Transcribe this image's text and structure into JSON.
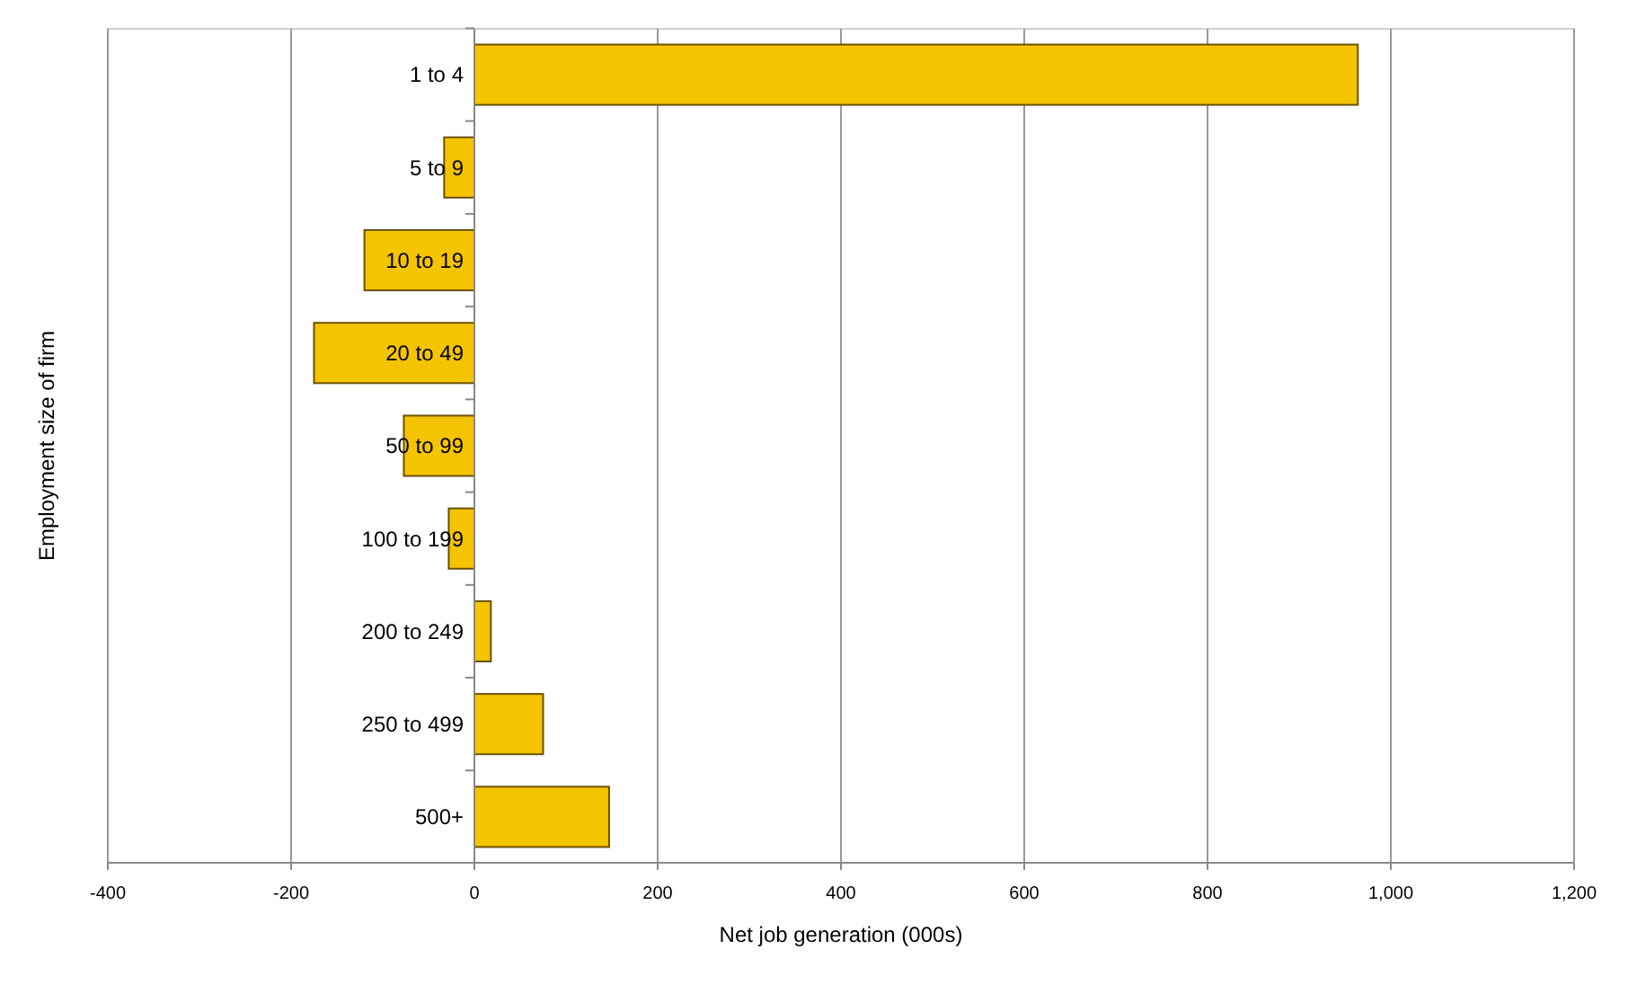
{
  "chart_data": {
    "type": "bar",
    "orientation": "horizontal",
    "xlabel": "Net job generation (000s)",
    "ylabel": "Employment size of firm",
    "categories": [
      "1 to 4",
      "5 to 9",
      "10 to 19",
      "20 to 49",
      "50 to 99",
      "100 to 199",
      "200 to 249",
      "250 to 499",
      "500+"
    ],
    "values": [
      964,
      -33,
      -120,
      -175,
      -77,
      -28,
      18,
      75,
      147
    ],
    "color": "#f5c400",
    "xlim": [
      -400,
      1200
    ],
    "xticks": [
      -400,
      -200,
      0,
      200,
      400,
      600,
      800,
      {
        "value": 1000,
        "label": "1,000"
      },
      {
        "value": 1200,
        "label": "1,200"
      }
    ],
    "grid": "x"
  }
}
